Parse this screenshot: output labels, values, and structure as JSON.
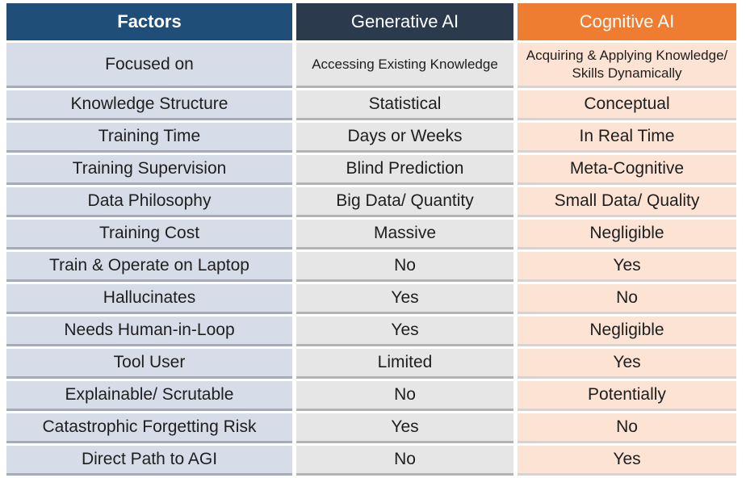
{
  "header": [
    "Factors",
    "Generative AI",
    "Cognitive AI"
  ],
  "rows": [
    [
      "Focused on",
      "Accessing Existing Knowledge",
      "Acquiring & Applying Knowledge/ Skills Dynamically"
    ],
    [
      "Knowledge Structure",
      "Statistical",
      "Conceptual"
    ],
    [
      "Training Time",
      "Days or Weeks",
      "In Real Time"
    ],
    [
      "Training Supervision",
      "Blind Prediction",
      "Meta-Cognitive"
    ],
    [
      "Data Philosophy",
      "Big Data/ Quantity",
      "Small Data/ Quality"
    ],
    [
      "Training Cost",
      "Massive",
      "Negligible"
    ],
    [
      "Train & Operate on Laptop",
      "No",
      "Yes"
    ],
    [
      "Hallucinates",
      "Yes",
      "No"
    ],
    [
      "Needs Human-in-Loop",
      "Yes",
      "Negligible"
    ],
    [
      "Tool User",
      "Limited",
      "Yes"
    ],
    [
      "Explainable/ Scrutable",
      "No",
      "Potentially"
    ],
    [
      "Catastrophic Forgetting Risk",
      "Yes",
      "No"
    ],
    [
      "Direct Path to AGI",
      "No",
      "Yes"
    ]
  ],
  "colors": {
    "factors_header": "#1f4e79",
    "generative_header": "#2c3a4e",
    "cognitive_header": "#ee7c31",
    "factors_cell": "#d7dde8",
    "generative_cell": "#e6e6e6",
    "cognitive_cell": "#fde3d3"
  }
}
